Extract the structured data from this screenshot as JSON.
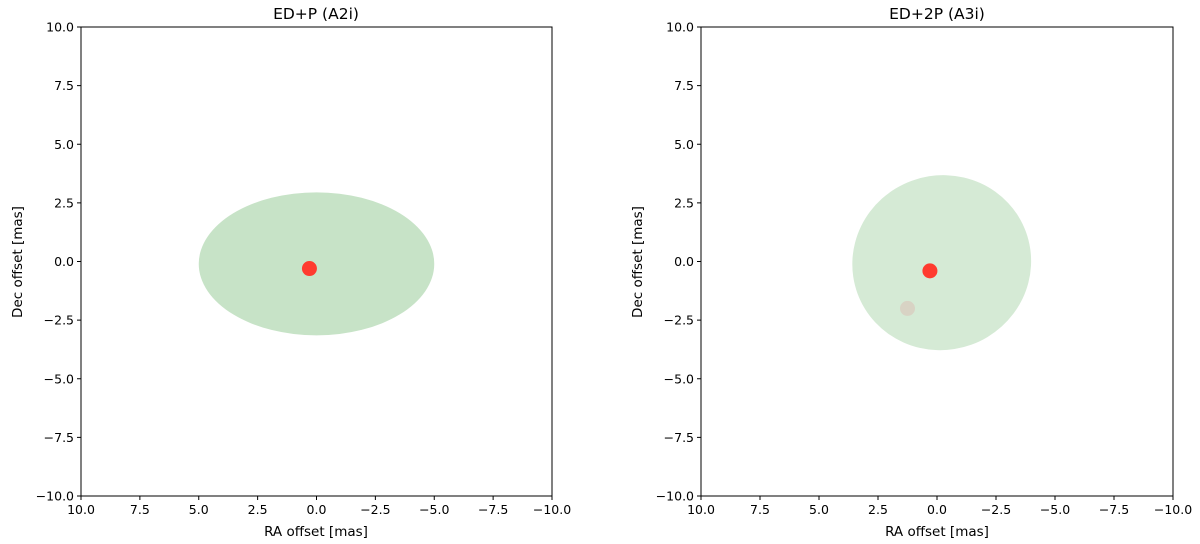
{
  "chart_data": [
    {
      "type": "scatter",
      "title": "ED+P (A2i)",
      "xlabel": "RA offset [mas]",
      "ylabel": "Dec offset [mas]",
      "xlim": [
        10.0,
        -10.0
      ],
      "ylim": [
        -10.0,
        10.0
      ],
      "x_inverted": true,
      "xticks": [
        "10.0",
        "7.5",
        "5.0",
        "2.5",
        "0.0",
        "−2.5",
        "−5.0",
        "−7.5",
        "−10.0"
      ],
      "yticks": [
        "10.0",
        "7.5",
        "5.0",
        "2.5",
        "0.0",
        "−2.5",
        "−5.0",
        "−7.5",
        "−10.0"
      ],
      "grid": false,
      "ellipses": [
        {
          "center": [
            0.0,
            -0.1
          ],
          "semi_x": 5.0,
          "semi_y": 3.05,
          "angle": 0,
          "color": "#c7e3c7",
          "opacity": 1.0
        }
      ],
      "points": [
        {
          "x": 0.3,
          "y": -0.3,
          "color": "#ff3b2f",
          "opacity": 1.0
        }
      ]
    },
    {
      "type": "scatter",
      "title": "ED+2P (A3i)",
      "xlabel": "RA offset [mas]",
      "ylabel": "Dec offset [mas]",
      "xlim": [
        10.0,
        -10.0
      ],
      "ylim": [
        -10.0,
        10.0
      ],
      "x_inverted": true,
      "xticks": [
        "10.0",
        "7.5",
        "5.0",
        "2.5",
        "0.0",
        "−2.5",
        "−5.0",
        "−7.5",
        "−10.0"
      ],
      "yticks": [
        "10.0",
        "7.5",
        "5.0",
        "2.5",
        "0.0",
        "−2.5",
        "−5.0",
        "−7.5",
        "−10.0"
      ],
      "grid": false,
      "ellipses": [
        {
          "center": [
            -0.2,
            -0.05
          ],
          "semi_x": 3.8,
          "semi_y": 3.72,
          "angle": -20,
          "color": "#d5ead5",
          "opacity": 1.0
        }
      ],
      "points": [
        {
          "x": 1.25,
          "y": -2.0,
          "color": "#d8d3c4",
          "opacity": 1.0
        },
        {
          "x": 0.3,
          "y": -0.4,
          "color": "#ff3b2f",
          "opacity": 1.0
        }
      ]
    }
  ]
}
